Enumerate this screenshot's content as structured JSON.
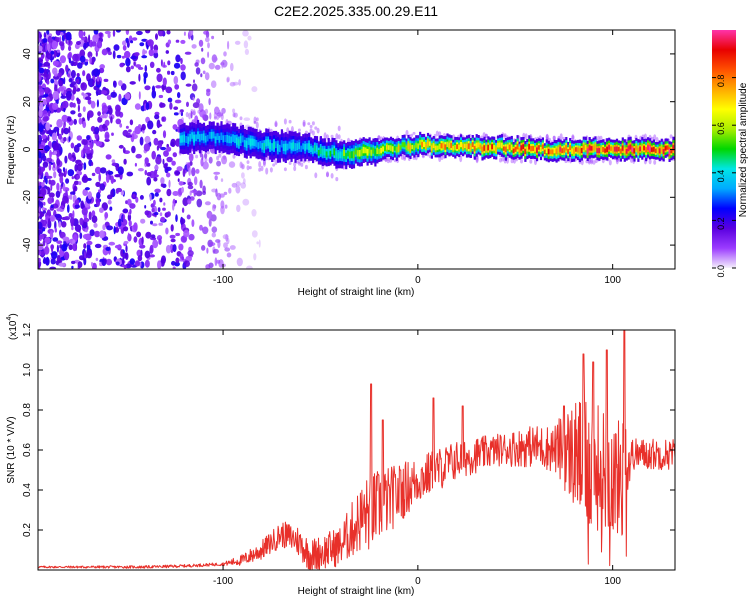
{
  "title": "C2E2.2025.335.00.29.E11",
  "colors": {
    "snr_line": "#e8302a",
    "colorbar": [
      "#f5f0fb",
      "#9b3cff",
      "#5a00e0",
      "#0000ff",
      "#00aaff",
      "#00e6e6",
      "#00d700",
      "#aaee00",
      "#ffff00",
      "#ffaa00",
      "#ff5000",
      "#e80000",
      "#ff33aa"
    ]
  },
  "chart_data": [
    {
      "type": "heatmap",
      "name": "spectrogram",
      "xlabel": "Height of straight line (km)",
      "ylabel": "Frequency (Hz)",
      "xlim": [
        -195,
        132
      ],
      "ylim": [
        -50,
        50
      ],
      "xticks": [
        -100,
        0,
        100
      ],
      "xtick_labels": [
        "-100",
        "0",
        "100"
      ],
      "yticks": [
        -40,
        -20,
        0,
        20,
        40
      ],
      "ytick_labels": [
        "-40",
        "-20",
        "0",
        "20",
        "40"
      ],
      "colorbar": {
        "label": "Normalized spectral amplitude",
        "range": [
          0,
          1
        ],
        "ticks": [
          0.0,
          0.2,
          0.4,
          0.6,
          0.8
        ],
        "tick_labels": [
          "0.0",
          "0.2",
          "0.4",
          "0.6",
          "0.8"
        ]
      },
      "signal_band": {
        "x_start": -122,
        "x_end": 132,
        "center_freq": [
          [
            -122,
            5
          ],
          [
            -100,
            5
          ],
          [
            -80,
            2
          ],
          [
            -60,
            1
          ],
          [
            -40,
            -2
          ],
          [
            -20,
            0
          ],
          [
            0,
            2
          ],
          [
            20,
            1
          ],
          [
            40,
            1
          ],
          [
            60,
            0
          ],
          [
            80,
            0
          ],
          [
            100,
            0
          ],
          [
            132,
            0
          ]
        ],
        "peak_amplitude": [
          [
            -122,
            0.35
          ],
          [
            -60,
            0.4
          ],
          [
            -30,
            0.55
          ],
          [
            0,
            0.7
          ],
          [
            40,
            0.8
          ],
          [
            80,
            0.85
          ],
          [
            132,
            0.9
          ]
        ]
      },
      "noise_region": {
        "x_start": -195,
        "x_end": -100
      }
    },
    {
      "type": "line",
      "name": "snr",
      "xlabel": "Height of straight line (km)",
      "ylabel": "SNR (10 * V/V)",
      "multiplier_label": "(x10",
      "multiplier_exp": "4",
      "multiplier_close": ")",
      "xlim": [
        -195,
        132
      ],
      "ylim": [
        0,
        1.2
      ],
      "xticks": [
        -100,
        0,
        100
      ],
      "xtick_labels": [
        "-100",
        "0",
        "100"
      ],
      "yticks": [
        0.2,
        0.4,
        0.6,
        0.8,
        1.0,
        1.2
      ],
      "ytick_labels": [
        "0.2",
        "0.4",
        "0.6",
        "0.8",
        "1.0",
        "1.2"
      ],
      "series": [
        {
          "name": "SNR",
          "baseline": [
            [
              -195,
              0.015
            ],
            [
              -140,
              0.015
            ],
            [
              -120,
              0.02
            ],
            [
              -100,
              0.03
            ],
            [
              -90,
              0.05
            ],
            [
              -80,
              0.1
            ],
            [
              -70,
              0.18
            ],
            [
              -62,
              0.15
            ],
            [
              -55,
              0.07
            ],
            [
              -40,
              0.12
            ],
            [
              -30,
              0.25
            ],
            [
              -20,
              0.32
            ],
            [
              -10,
              0.38
            ],
            [
              0,
              0.45
            ],
            [
              20,
              0.55
            ],
            [
              40,
              0.6
            ],
            [
              60,
              0.62
            ],
            [
              75,
              0.6
            ],
            [
              85,
              0.55
            ],
            [
              95,
              0.5
            ],
            [
              105,
              0.45
            ],
            [
              110,
              0.58
            ],
            [
              132,
              0.58
            ]
          ],
          "amplitude": [
            [
              -195,
              0.005
            ],
            [
              -100,
              0.008
            ],
            [
              -80,
              0.05
            ],
            [
              -60,
              0.08
            ],
            [
              -40,
              0.1
            ],
            [
              -25,
              0.2
            ],
            [
              0,
              0.12
            ],
            [
              40,
              0.08
            ],
            [
              70,
              0.12
            ],
            [
              85,
              0.35
            ],
            [
              100,
              0.3
            ],
            [
              106,
              0.3
            ],
            [
              110,
              0.08
            ],
            [
              132,
              0.08
            ]
          ],
          "spikes": [
            [
              -24,
              0.93
            ],
            [
              -18,
              0.75
            ],
            [
              -9,
              0.5
            ],
            [
              8,
              0.86
            ],
            [
              23,
              0.82
            ],
            [
              75,
              0.82
            ],
            [
              85,
              1.08
            ],
            [
              90,
              1.04
            ],
            [
              97,
              1.1
            ],
            [
              106,
              1.2
            ]
          ]
        }
      ]
    }
  ]
}
